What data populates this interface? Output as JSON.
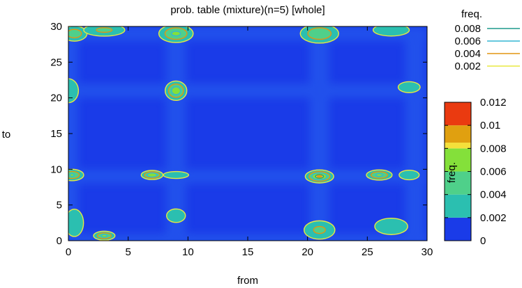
{
  "chart_data": {
    "type": "heatmap",
    "title": "prob. table (mixture)(n=5) [whole]",
    "xlabel": "from",
    "ylabel": "to",
    "xlim": [
      0,
      30
    ],
    "ylim": [
      0,
      30
    ],
    "x_ticks": [
      "0",
      "5",
      "10",
      "15",
      "20",
      "25",
      "30"
    ],
    "y_ticks": [
      "0",
      "5",
      "10",
      "15",
      "20",
      "25",
      "30"
    ],
    "grid": false,
    "contour_legend": {
      "title": "freq.",
      "placement": "top-right",
      "entries": [
        {
          "label": "0.008",
          "color": "#1f9a8c"
        },
        {
          "label": "0.006",
          "color": "#33b6d3"
        },
        {
          "label": "0.004",
          "color": "#e29510"
        },
        {
          "label": "0.002",
          "color": "#e8e840"
        }
      ]
    },
    "colorbar": {
      "label": "freq.",
      "range": [
        0,
        0.012
      ],
      "ticks": [
        "0",
        "0.002",
        "0.004",
        "0.006",
        "0.008",
        "0.01",
        "0.012"
      ],
      "bands": [
        {
          "from": 0,
          "to": 0.002,
          "color": "#1a3be8"
        },
        {
          "from": 0.002,
          "to": 0.004,
          "color": "#2bbfb0"
        },
        {
          "from": 0.004,
          "to": 0.006,
          "color": "#4fd08a"
        },
        {
          "from": 0.006,
          "to": 0.008,
          "color": "#84e03a"
        },
        {
          "from": 0.008,
          "to": 0.0085,
          "color": "#f4e03a"
        },
        {
          "from": 0.0085,
          "to": 0.01,
          "color": "#e0a010"
        },
        {
          "from": 0.01,
          "to": 0.012,
          "color": "#ea3a10"
        }
      ]
    },
    "background_level": 0.0005,
    "hotspots": [
      {
        "x": 0.5,
        "y": 29,
        "peak": 0.0055,
        "rx": 1.2,
        "ry": 1.2
      },
      {
        "x": 3,
        "y": 29.5,
        "peak": 0.0045,
        "rx": 2,
        "ry": 1
      },
      {
        "x": 9,
        "y": 29,
        "peak": 0.0065,
        "rx": 1.6,
        "ry": 1.4
      },
      {
        "x": 21,
        "y": 29,
        "peak": 0.006,
        "rx": 1.8,
        "ry": 1.5
      },
      {
        "x": 27,
        "y": 29.5,
        "peak": 0.004,
        "rx": 1.8,
        "ry": 1
      },
      {
        "x": 0,
        "y": 21,
        "peak": 0.004,
        "rx": 1,
        "ry": 2
      },
      {
        "x": 9,
        "y": 21,
        "peak": 0.0075,
        "rx": 1,
        "ry": 1.5
      },
      {
        "x": 28.5,
        "y": 21.5,
        "peak": 0.003,
        "rx": 1.2,
        "ry": 1
      },
      {
        "x": 0.3,
        "y": 9.2,
        "peak": 0.0062,
        "rx": 1.1,
        "ry": 0.9
      },
      {
        "x": 7,
        "y": 9.2,
        "peak": 0.008,
        "rx": 1,
        "ry": 0.7
      },
      {
        "x": 9,
        "y": 9.2,
        "peak": 0.0035,
        "rx": 1.3,
        "ry": 0.6
      },
      {
        "x": 21,
        "y": 9,
        "peak": 0.009,
        "rx": 1.3,
        "ry": 1
      },
      {
        "x": 26,
        "y": 9.2,
        "peak": 0.0065,
        "rx": 1.2,
        "ry": 0.8
      },
      {
        "x": 28.5,
        "y": 9.2,
        "peak": 0.004,
        "rx": 1,
        "ry": 0.8
      },
      {
        "x": 3,
        "y": 0.7,
        "peak": 0.0065,
        "rx": 1,
        "ry": 0.7
      },
      {
        "x": 9,
        "y": 3.5,
        "peak": 0.0032,
        "rx": 1,
        "ry": 1.2
      },
      {
        "x": 21,
        "y": 1.5,
        "peak": 0.0045,
        "rx": 1.5,
        "ry": 1.5
      },
      {
        "x": 27,
        "y": 2,
        "peak": 0.003,
        "rx": 1.8,
        "ry": 1.5
      },
      {
        "x": 0.5,
        "y": 2.5,
        "peak": 0.003,
        "rx": 1,
        "ry": 2.5
      }
    ]
  }
}
